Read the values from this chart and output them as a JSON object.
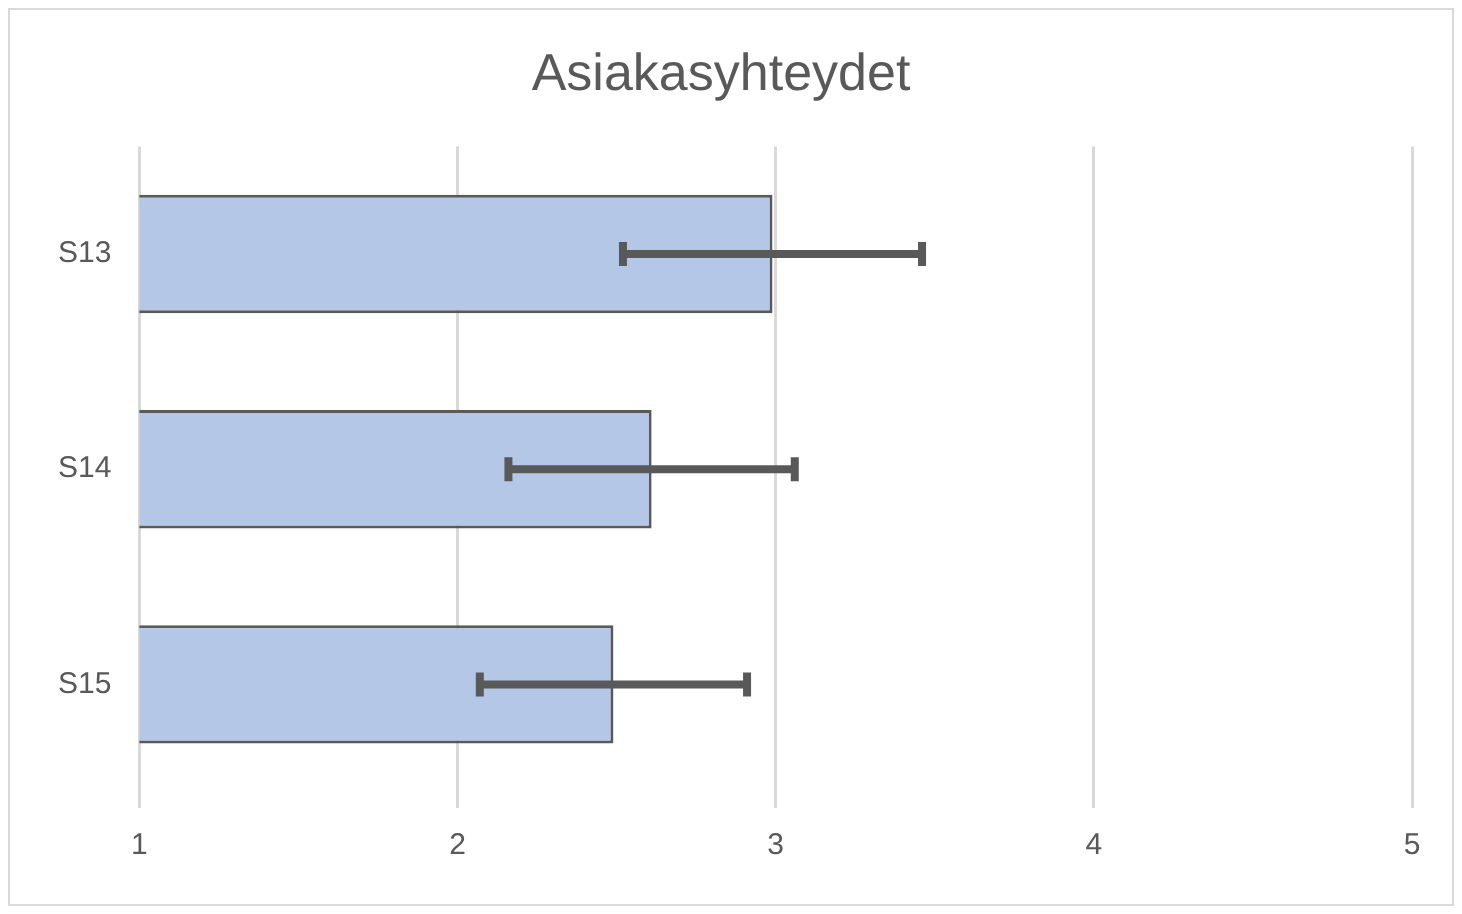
{
  "chart_data": {
    "type": "bar",
    "orientation": "horizontal",
    "title": "Asiakasyhteydet",
    "categories": [
      "S13",
      "S14",
      "S15"
    ],
    "values": [
      2.99,
      2.61,
      2.49
    ],
    "errors": [
      0.47,
      0.45,
      0.42
    ],
    "color": "#b4c7e7",
    "xlim": [
      1,
      5
    ],
    "xticks": [
      1,
      2,
      3,
      4,
      5
    ],
    "grid": "x",
    "legend": false
  }
}
